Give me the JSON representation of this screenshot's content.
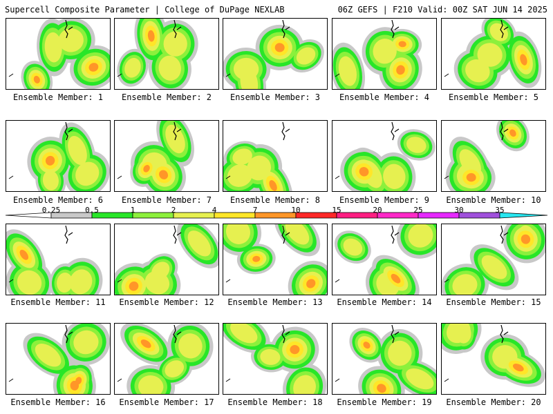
{
  "header": {
    "left_title": "Supercell Composite Parameter | College of DuPage NEXLAB",
    "right_title": "06Z GEFS | F210 Valid: 00Z SAT JUN 14 2025"
  },
  "colorbar": {
    "labels": [
      "0.25",
      "0.5",
      "1",
      "2",
      "4",
      "7",
      "10",
      "15",
      "20",
      "25",
      "30",
      "35"
    ],
    "colors": [
      "#c8c8c8",
      "#28e628",
      "#8cf03c",
      "#e6f050",
      "#ffe628",
      "#ff9628",
      "#ff2828",
      "#ff1e82",
      "#ff28c8",
      "#e628ff",
      "#a050dc",
      "#28e6f0"
    ]
  },
  "members": [
    {
      "label": "Ensemble Member: 1"
    },
    {
      "label": "Ensemble Member: 2"
    },
    {
      "label": "Ensemble Member: 3"
    },
    {
      "label": "Ensemble Member: 4"
    },
    {
      "label": "Ensemble Member: 5"
    },
    {
      "label": "Ensemble Member: 6"
    },
    {
      "label": "Ensemble Member: 7"
    },
    {
      "label": "Ensemble Member: 8"
    },
    {
      "label": "Ensemble Member: 9"
    },
    {
      "label": "Ensemble Member: 10"
    },
    {
      "label": "Ensemble Member: 11"
    },
    {
      "label": "Ensemble Member: 12"
    },
    {
      "label": "Ensemble Member: 13"
    },
    {
      "label": "Ensemble Member: 14"
    },
    {
      "label": "Ensemble Member: 15"
    },
    {
      "label": "Ensemble Member: 16"
    },
    {
      "label": "Ensemble Member: 17"
    },
    {
      "label": "Ensemble Member: 18"
    },
    {
      "label": "Ensemble Member: 19"
    },
    {
      "label": "Ensemble Member: 20"
    }
  ]
}
